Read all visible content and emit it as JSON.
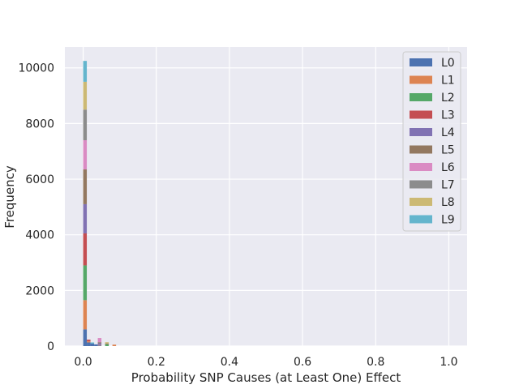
{
  "chart_data": {
    "type": "bar",
    "subtype": "stacked-histogram",
    "title": "",
    "xlabel": "Probability SNP Causes (at Least One) Effect",
    "ylabel": "Frequency",
    "xlim": [
      -0.05,
      1.05
    ],
    "ylim": [
      0,
      10750
    ],
    "x_ticks": [
      0.0,
      0.2,
      0.4,
      0.6,
      0.8,
      1.0
    ],
    "x_tick_labels": [
      "0.0",
      "0.2",
      "0.4",
      "0.6",
      "0.8",
      "1.0"
    ],
    "y_ticks": [
      0,
      2000,
      4000,
      6000,
      8000,
      10000
    ],
    "y_tick_labels": [
      "0",
      "2000",
      "4000",
      "6000",
      "8000",
      "10000"
    ],
    "grid": true,
    "background": "#eaeaf2",
    "bin_width": 0.01,
    "bin_starts": [
      0.0,
      0.01,
      0.02,
      0.03,
      0.04,
      0.05,
      0.06,
      0.07,
      0.08
    ],
    "legend_position": "top-right",
    "series": [
      {
        "name": "L0",
        "color": "#4c72b0",
        "values": [
          600,
          130,
          90,
          60,
          20,
          0,
          0,
          0,
          0
        ]
      },
      {
        "name": "L1",
        "color": "#dd8452",
        "values": [
          1050,
          40,
          0,
          0,
          20,
          0,
          0,
          0,
          50
        ]
      },
      {
        "name": "L2",
        "color": "#55a868",
        "values": [
          1250,
          0,
          0,
          0,
          0,
          0,
          60,
          0,
          0
        ]
      },
      {
        "name": "L3",
        "color": "#c44e52",
        "values": [
          1150,
          60,
          0,
          0,
          0,
          0,
          0,
          0,
          0
        ]
      },
      {
        "name": "L4",
        "color": "#8172b3",
        "values": [
          1050,
          0,
          0,
          0,
          60,
          0,
          0,
          0,
          0
        ]
      },
      {
        "name": "L5",
        "color": "#937860",
        "values": [
          1250,
          0,
          0,
          0,
          40,
          0,
          30,
          0,
          0
        ]
      },
      {
        "name": "L6",
        "color": "#da8bc3",
        "values": [
          1050,
          0,
          0,
          0,
          150,
          0,
          0,
          0,
          0
        ]
      },
      {
        "name": "L7",
        "color": "#8c8c8c",
        "values": [
          1100,
          0,
          0,
          0,
          0,
          0,
          0,
          0,
          0
        ]
      },
      {
        "name": "L8",
        "color": "#ccb974",
        "values": [
          1000,
          0,
          0,
          0,
          0,
          0,
          50,
          0,
          0
        ]
      },
      {
        "name": "L9",
        "color": "#64b5cd",
        "values": [
          750,
          0,
          40,
          0,
          0,
          0,
          0,
          0,
          0
        ]
      }
    ]
  }
}
